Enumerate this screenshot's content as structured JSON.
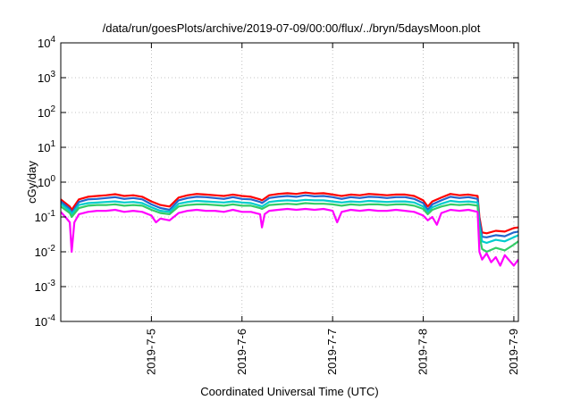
{
  "chart_data": {
    "type": "line",
    "title": "/data/run/goesPlots/archive/2019-07-09/00:00/flux/../bryn/5daysMoon.plot",
    "xlabel": "Coordinated Universal Time (UTC)",
    "ylabel": "cGy/day",
    "yscale": "log",
    "ylim": [
      0.0001,
      10000
    ],
    "xlim": [
      4.0,
      9.05
    ],
    "y_ticks": [
      {
        "exp": "-4",
        "value": 0.0001
      },
      {
        "exp": "-3",
        "value": 0.001
      },
      {
        "exp": "-2",
        "value": 0.01
      },
      {
        "exp": "-1",
        "value": 0.1
      },
      {
        "exp": "0",
        "value": 1
      },
      {
        "exp": "1",
        "value": 10
      },
      {
        "exp": "2",
        "value": 100
      },
      {
        "exp": "3",
        "value": 1000
      },
      {
        "exp": "4",
        "value": 10000
      }
    ],
    "x_ticks": [
      {
        "label": "2019-7-5",
        "value": 5
      },
      {
        "label": "2019-7-6",
        "value": 6
      },
      {
        "label": "2019-7-7",
        "value": 7
      },
      {
        "label": "2019-7-8",
        "value": 8
      },
      {
        "label": "2019-7-9",
        "value": 9
      }
    ],
    "grid": true,
    "series": [
      {
        "color": "#ff0000",
        "x": [
          4.0,
          4.1,
          4.12,
          4.2,
          4.3,
          4.4,
          4.5,
          4.6,
          4.7,
          4.8,
          4.9,
          5.0,
          5.1,
          5.2,
          5.3,
          5.4,
          5.5,
          5.6,
          5.7,
          5.8,
          5.9,
          6.0,
          6.1,
          6.2,
          6.22,
          6.3,
          6.4,
          6.5,
          6.6,
          6.7,
          6.8,
          6.9,
          7.0,
          7.1,
          7.2,
          7.3,
          7.4,
          7.5,
          7.6,
          7.7,
          7.8,
          7.9,
          8.0,
          8.05,
          8.1,
          8.2,
          8.3,
          8.4,
          8.5,
          8.6,
          8.62,
          8.65,
          8.7,
          8.8,
          8.9,
          9.0,
          9.05
        ],
        "values": [
          0.32,
          0.2,
          0.16,
          0.32,
          0.38,
          0.4,
          0.42,
          0.45,
          0.4,
          0.42,
          0.38,
          0.28,
          0.22,
          0.2,
          0.36,
          0.42,
          0.46,
          0.44,
          0.42,
          0.4,
          0.44,
          0.4,
          0.38,
          0.32,
          0.3,
          0.42,
          0.46,
          0.48,
          0.46,
          0.5,
          0.47,
          0.48,
          0.44,
          0.4,
          0.44,
          0.42,
          0.46,
          0.44,
          0.42,
          0.44,
          0.44,
          0.4,
          0.3,
          0.2,
          0.28,
          0.36,
          0.46,
          0.42,
          0.44,
          0.4,
          0.1,
          0.036,
          0.034,
          0.04,
          0.038,
          0.048,
          0.05
        ]
      },
      {
        "color": "#2266cc",
        "x": [
          4.0,
          4.1,
          4.12,
          4.2,
          4.3,
          4.4,
          4.5,
          4.6,
          4.7,
          4.8,
          4.9,
          5.0,
          5.1,
          5.2,
          5.3,
          5.4,
          5.5,
          5.6,
          5.7,
          5.8,
          5.9,
          6.0,
          6.1,
          6.2,
          6.22,
          6.3,
          6.4,
          6.5,
          6.6,
          6.7,
          6.8,
          6.9,
          7.0,
          7.1,
          7.2,
          7.3,
          7.4,
          7.5,
          7.6,
          7.7,
          7.8,
          7.9,
          8.0,
          8.05,
          8.1,
          8.2,
          8.3,
          8.4,
          8.5,
          8.6,
          8.62,
          8.65,
          8.7,
          8.8,
          8.9,
          9.0,
          9.05
        ],
        "values": [
          0.28,
          0.17,
          0.13,
          0.27,
          0.32,
          0.33,
          0.35,
          0.37,
          0.33,
          0.35,
          0.32,
          0.23,
          0.18,
          0.16,
          0.3,
          0.35,
          0.38,
          0.37,
          0.35,
          0.33,
          0.37,
          0.33,
          0.32,
          0.27,
          0.25,
          0.35,
          0.38,
          0.4,
          0.38,
          0.42,
          0.39,
          0.4,
          0.37,
          0.33,
          0.37,
          0.35,
          0.38,
          0.37,
          0.35,
          0.37,
          0.37,
          0.33,
          0.25,
          0.16,
          0.23,
          0.3,
          0.38,
          0.35,
          0.37,
          0.33,
          0.08,
          0.027,
          0.026,
          0.03,
          0.028,
          0.036,
          0.038
        ]
      },
      {
        "color": "#00cccc",
        "x": [
          4.0,
          4.1,
          4.12,
          4.2,
          4.3,
          4.4,
          4.5,
          4.6,
          4.7,
          4.8,
          4.9,
          5.0,
          5.1,
          5.2,
          5.3,
          5.4,
          5.5,
          5.6,
          5.7,
          5.8,
          5.9,
          6.0,
          6.1,
          6.2,
          6.22,
          6.3,
          6.4,
          6.5,
          6.6,
          6.7,
          6.8,
          6.9,
          7.0,
          7.1,
          7.2,
          7.3,
          7.4,
          7.5,
          7.6,
          7.7,
          7.8,
          7.9,
          8.0,
          8.05,
          8.1,
          8.2,
          8.3,
          8.4,
          8.5,
          8.6,
          8.62,
          8.65,
          8.7,
          8.8,
          8.9,
          9.0,
          9.05
        ],
        "values": [
          0.24,
          0.15,
          0.12,
          0.22,
          0.25,
          0.26,
          0.27,
          0.28,
          0.26,
          0.27,
          0.25,
          0.19,
          0.15,
          0.14,
          0.24,
          0.27,
          0.29,
          0.28,
          0.27,
          0.26,
          0.28,
          0.26,
          0.25,
          0.21,
          0.2,
          0.27,
          0.29,
          0.3,
          0.29,
          0.31,
          0.3,
          0.3,
          0.28,
          0.26,
          0.28,
          0.27,
          0.29,
          0.28,
          0.27,
          0.28,
          0.28,
          0.26,
          0.2,
          0.14,
          0.19,
          0.24,
          0.29,
          0.27,
          0.28,
          0.26,
          0.05,
          0.02,
          0.018,
          0.022,
          0.02,
          0.026,
          0.03
        ]
      },
      {
        "color": "#33cc66",
        "x": [
          4.0,
          4.1,
          4.12,
          4.2,
          4.3,
          4.4,
          4.5,
          4.6,
          4.7,
          4.8,
          4.9,
          5.0,
          5.1,
          5.2,
          5.3,
          5.4,
          5.5,
          5.6,
          5.7,
          5.8,
          5.9,
          6.0,
          6.1,
          6.2,
          6.22,
          6.3,
          6.4,
          6.5,
          6.6,
          6.7,
          6.8,
          6.9,
          7.0,
          7.1,
          7.2,
          7.3,
          7.4,
          7.5,
          7.6,
          7.7,
          7.8,
          7.9,
          8.0,
          8.05,
          8.1,
          8.2,
          8.3,
          8.4,
          8.5,
          8.6,
          8.62,
          8.65,
          8.7,
          8.8,
          8.9,
          9.0,
          9.05
        ],
        "values": [
          0.2,
          0.13,
          0.1,
          0.18,
          0.21,
          0.22,
          0.22,
          0.23,
          0.21,
          0.22,
          0.21,
          0.16,
          0.13,
          0.12,
          0.2,
          0.22,
          0.23,
          0.23,
          0.22,
          0.21,
          0.23,
          0.21,
          0.21,
          0.18,
          0.17,
          0.22,
          0.23,
          0.24,
          0.23,
          0.25,
          0.24,
          0.24,
          0.23,
          0.21,
          0.23,
          0.22,
          0.23,
          0.23,
          0.22,
          0.23,
          0.23,
          0.21,
          0.17,
          0.12,
          0.16,
          0.2,
          0.23,
          0.22,
          0.23,
          0.21,
          0.03,
          0.012,
          0.01,
          0.013,
          0.011,
          0.016,
          0.02
        ]
      },
      {
        "color": "#ff00ff",
        "x": [
          4.0,
          4.05,
          4.1,
          4.12,
          4.15,
          4.2,
          4.3,
          4.4,
          4.5,
          4.6,
          4.7,
          4.8,
          4.9,
          5.0,
          5.05,
          5.1,
          5.2,
          5.3,
          5.4,
          5.5,
          5.6,
          5.7,
          5.8,
          5.9,
          6.0,
          6.1,
          6.2,
          6.22,
          6.25,
          6.3,
          6.4,
          6.5,
          6.6,
          6.7,
          6.8,
          6.9,
          7.0,
          7.05,
          7.1,
          7.2,
          7.3,
          7.4,
          7.5,
          7.6,
          7.7,
          7.8,
          7.9,
          8.0,
          8.05,
          8.1,
          8.15,
          8.2,
          8.3,
          8.4,
          8.5,
          8.6,
          8.62,
          8.65,
          8.7,
          8.75,
          8.8,
          8.85,
          8.9,
          9.0,
          9.05
        ],
        "values": [
          0.14,
          0.1,
          0.07,
          0.01,
          0.07,
          0.12,
          0.14,
          0.15,
          0.15,
          0.16,
          0.14,
          0.15,
          0.14,
          0.11,
          0.07,
          0.09,
          0.08,
          0.13,
          0.15,
          0.16,
          0.15,
          0.15,
          0.14,
          0.16,
          0.14,
          0.14,
          0.12,
          0.05,
          0.12,
          0.15,
          0.16,
          0.17,
          0.16,
          0.17,
          0.16,
          0.17,
          0.15,
          0.07,
          0.14,
          0.16,
          0.15,
          0.16,
          0.15,
          0.15,
          0.16,
          0.15,
          0.14,
          0.11,
          0.08,
          0.1,
          0.06,
          0.13,
          0.16,
          0.15,
          0.16,
          0.14,
          0.01,
          0.006,
          0.009,
          0.005,
          0.007,
          0.004,
          0.008,
          0.004,
          0.006
        ]
      }
    ]
  }
}
